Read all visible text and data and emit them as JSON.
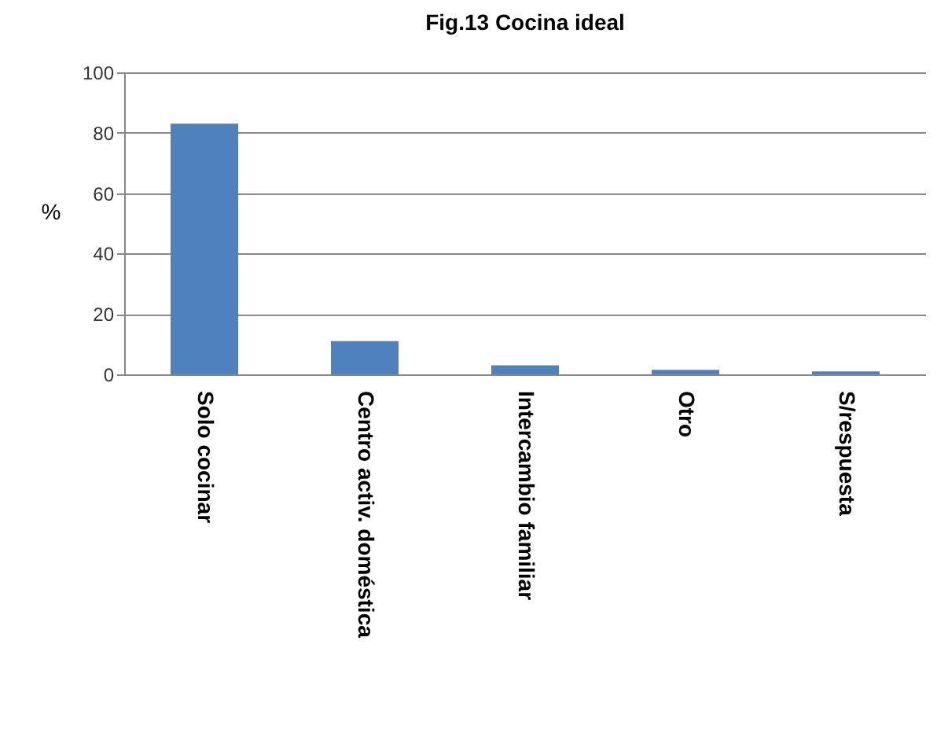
{
  "chart_data": {
    "type": "bar",
    "title": "Fig.13 Cocina ideal",
    "ylabel": "%",
    "categories": [
      "Solo cocinar",
      "Centro activ. doméstica",
      "Intercambio familiar",
      "Otro",
      "S/respuesta"
    ],
    "values": [
      83,
      11,
      3,
      1.5,
      1
    ],
    "color": "#4f81bd",
    "ylim": [
      0,
      100
    ],
    "yticks": [
      0,
      20,
      40,
      60,
      80,
      100
    ],
    "grid": "y"
  }
}
